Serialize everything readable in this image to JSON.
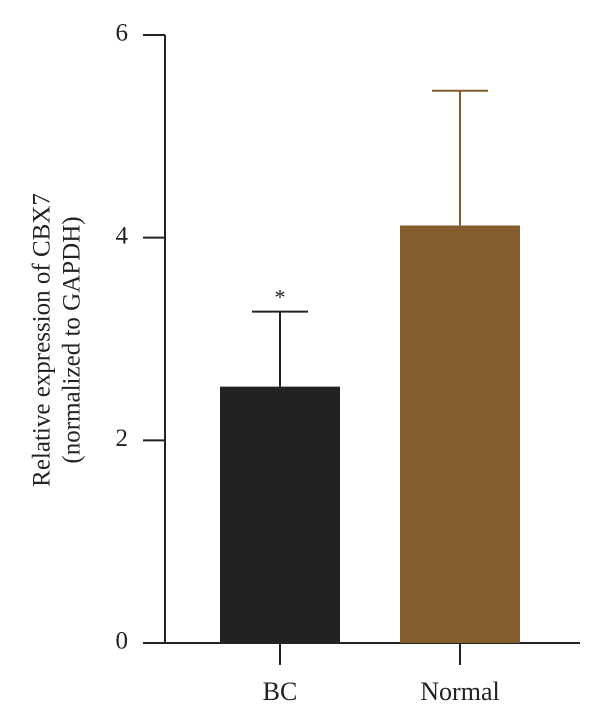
{
  "chart_data": {
    "type": "bar",
    "ylabel": [
      "Relative expression of CBX7",
      "(normalized to GAPDH)"
    ],
    "categories": [
      "BC",
      "Normal"
    ],
    "values": [
      2.53,
      4.12
    ],
    "errors": [
      0.74,
      1.33
    ],
    "significance": [
      "*",
      null
    ],
    "colors": [
      "#222222",
      "#845d2c"
    ],
    "ylim": [
      0,
      6
    ],
    "yticks": [
      0,
      2,
      4,
      6
    ]
  }
}
